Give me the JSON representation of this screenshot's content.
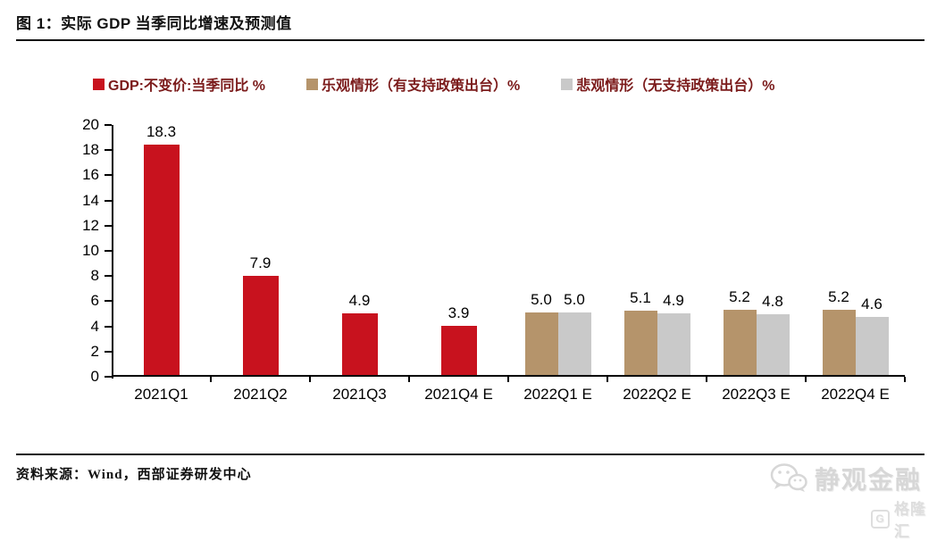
{
  "header": {
    "title": "图 1：实际 GDP 当季同比增速及预测值"
  },
  "legend": [
    {
      "label": "GDP:不变价:当季同比 %",
      "color": "#C8121E"
    },
    {
      "label": "乐观情形（有支持政策出台）%",
      "color": "#B5946B"
    },
    {
      "label": "悲观情形（无支持政策出台）%",
      "color": "#C9C9C9"
    }
  ],
  "chart_data": {
    "type": "bar",
    "title": "实际 GDP 当季同比增速及预测值",
    "categories": [
      "2021Q1",
      "2021Q2",
      "2021Q3",
      "2021Q4 E",
      "2022Q1 E",
      "2022Q2 E",
      "2022Q3 E",
      "2022Q4 E"
    ],
    "series": [
      {
        "name": "GDP:不变价:当季同比 %",
        "color": "#C8121E",
        "values": [
          18.3,
          7.9,
          4.9,
          3.9,
          null,
          null,
          null,
          null
        ]
      },
      {
        "name": "乐观情形（有支持政策出台）%",
        "color": "#B5946B",
        "values": [
          null,
          null,
          null,
          null,
          5.0,
          5.1,
          5.2,
          5.2
        ]
      },
      {
        "name": "悲观情形（无支持政策出台）%",
        "color": "#C9C9C9",
        "values": [
          null,
          null,
          null,
          null,
          5.0,
          4.9,
          4.8,
          4.6
        ]
      }
    ],
    "xlabel": "",
    "ylabel": "",
    "ylim": [
      0,
      20
    ],
    "ytick_step": 2,
    "grid": false,
    "legend_position": "top",
    "data_labels": true
  },
  "footer": {
    "source": "资料来源：Wind，西部证券研发中心"
  },
  "watermarks": {
    "wechat_account": "静观金融",
    "gelonghui": "格隆汇",
    "gelonghui_badge": "G"
  }
}
